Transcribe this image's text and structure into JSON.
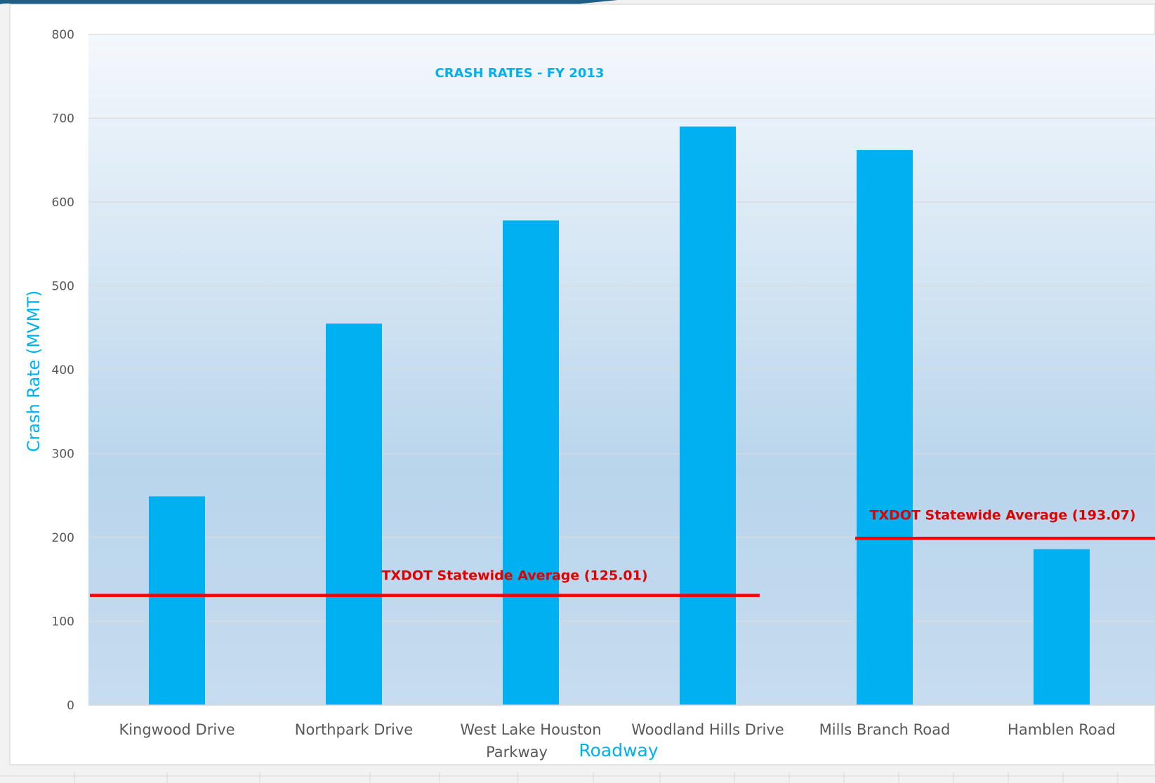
{
  "colors": {
    "bar": "#00b0f0",
    "title": "#00b0f0",
    "axis_title": "#00b0f0",
    "reference_line": "#ff0000",
    "reference_label": "#e00000",
    "tick_text": "#595959",
    "gridline": "#d9d9d9",
    "top_band": "#1f5f86"
  },
  "chart_data": {
    "type": "bar",
    "title": "CRASH RATES - FY 2013",
    "xlabel": "Roadway",
    "ylabel": "Crash Rate (MVMT)",
    "ylim": [
      0,
      800
    ],
    "yticks": [
      0,
      100,
      200,
      300,
      400,
      500,
      600,
      700,
      800
    ],
    "grid": true,
    "legend": "none",
    "categories": [
      [
        "Kingwood Drive"
      ],
      [
        "Northpark Drive"
      ],
      [
        "West Lake Houston",
        "Parkway"
      ],
      [
        "Woodland Hills Drive"
      ],
      [
        "Mills Branch Road"
      ],
      [
        "Hamblen Road"
      ]
    ],
    "values": [
      249,
      455,
      578,
      690,
      662,
      186
    ],
    "reference_lines": [
      {
        "label": "TXDOT Statewide Average (125.01)",
        "value": 125.01,
        "from_category": 0,
        "to_category": 3
      },
      {
        "label": "TXDOT Statewide Average (193.07)",
        "value": 193.07,
        "from_category": 4,
        "to_category": 5
      }
    ]
  }
}
